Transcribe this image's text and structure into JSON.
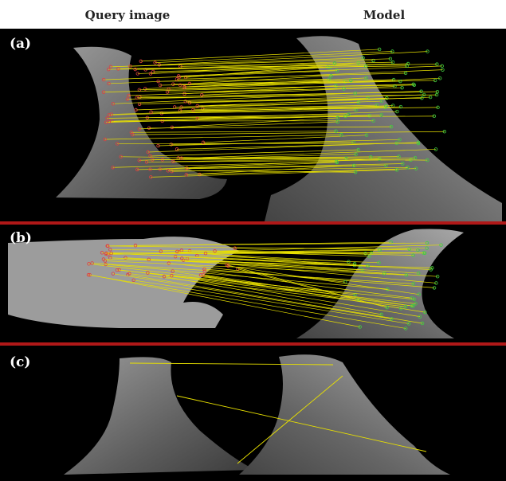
{
  "header": {
    "query": "Query image",
    "model": "Model"
  },
  "panels": [
    {
      "label": "(a)"
    },
    {
      "label": "(b)"
    },
    {
      "label": "(c)"
    }
  ]
}
